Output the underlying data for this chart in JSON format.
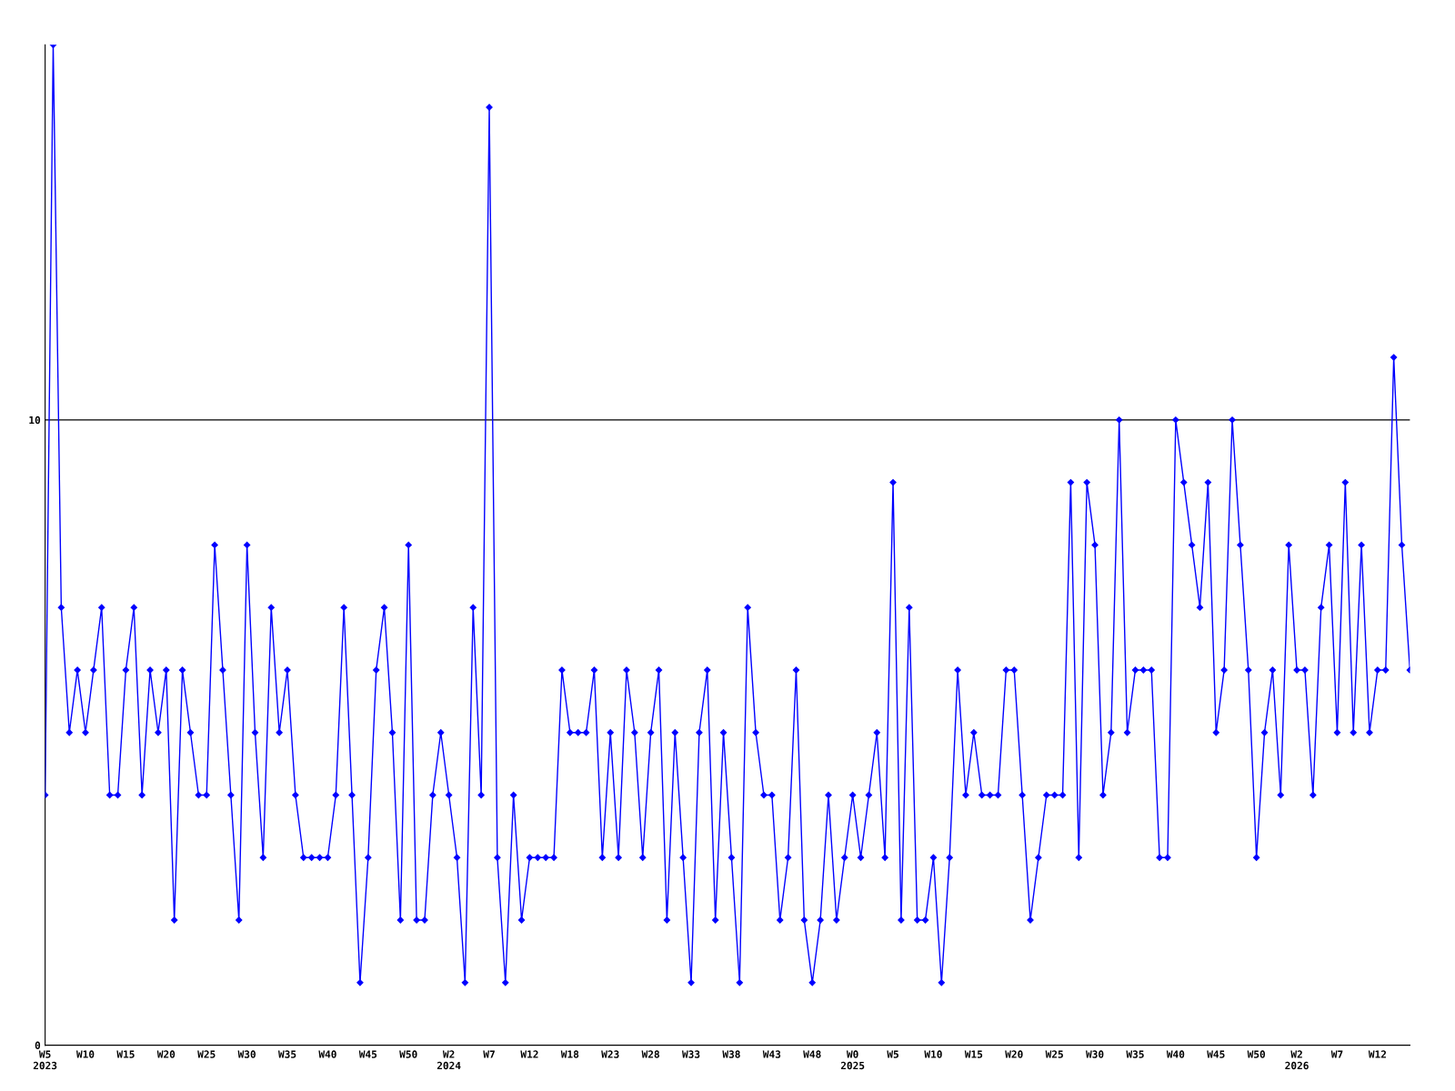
{
  "chart_data": {
    "type": "line",
    "color": "#0000ff",
    "marker": "diamond",
    "line_style": "solid",
    "grid": "y",
    "categories": [
      "W5\n2023",
      null,
      null,
      null,
      null,
      "W10",
      null,
      null,
      null,
      null,
      "W15",
      null,
      null,
      null,
      null,
      "W20",
      null,
      null,
      null,
      null,
      "W25",
      null,
      null,
      null,
      null,
      "W30",
      null,
      null,
      null,
      null,
      "W35",
      null,
      null,
      null,
      null,
      "W40",
      null,
      null,
      null,
      null,
      "W45",
      null,
      null,
      null,
      null,
      "W50",
      null,
      null,
      null,
      null,
      "W2\n2024",
      null,
      null,
      null,
      null,
      "W7",
      null,
      null,
      null,
      null,
      "W12",
      null,
      null,
      null,
      null,
      "W18",
      null,
      null,
      null,
      null,
      "W23",
      null,
      null,
      null,
      null,
      "W28",
      null,
      null,
      null,
      null,
      "W33",
      null,
      null,
      null,
      null,
      "W38",
      null,
      null,
      null,
      null,
      "W43",
      null,
      null,
      null,
      null,
      "W48",
      null,
      null,
      null,
      null,
      "W0\n2025",
      null,
      null,
      null,
      null,
      "W5",
      null,
      null,
      null,
      null,
      "W10",
      null,
      null,
      null,
      null,
      "W15",
      null,
      null,
      null,
      null,
      "W20",
      null,
      null,
      null,
      null,
      "W25",
      null,
      null,
      null,
      null,
      "W30",
      null,
      null,
      null,
      null,
      "W35",
      null,
      null,
      null,
      null,
      "W40",
      null,
      null,
      null,
      null,
      "W45",
      null,
      null,
      null,
      null,
      "W50",
      null,
      null,
      null,
      null,
      "W2\n2026",
      null,
      null,
      null,
      null,
      "W7",
      null,
      null,
      null,
      null,
      "W12",
      null,
      null,
      null,
      null
    ],
    "values": [
      4,
      16,
      7,
      5,
      6,
      5,
      6,
      7,
      4,
      4,
      6,
      7,
      4,
      6,
      5,
      6,
      2,
      6,
      5,
      4,
      4,
      8,
      6,
      4,
      2,
      8,
      5,
      3,
      7,
      5,
      6,
      4,
      3,
      3,
      3,
      3,
      4,
      7,
      4,
      1,
      3,
      6,
      7,
      5,
      2,
      8,
      2,
      2,
      4,
      5,
      4,
      3,
      1,
      7,
      4,
      15,
      3,
      1,
      4,
      2,
      3,
      3,
      3,
      3,
      6,
      5,
      5,
      5,
      6,
      3,
      5,
      3,
      6,
      5,
      3,
      5,
      6,
      2,
      5,
      3,
      1,
      5,
      6,
      2,
      5,
      3,
      1,
      7,
      5,
      4,
      4,
      2,
      3,
      6,
      2,
      1,
      2,
      4,
      2,
      3,
      4,
      3,
      4,
      5,
      3,
      9,
      2,
      7,
      2,
      2,
      3,
      1,
      3,
      6,
      4,
      5,
      4,
      4,
      4,
      6,
      6,
      4,
      2,
      3,
      4,
      4,
      4,
      9,
      3,
      9,
      8,
      4,
      5,
      10,
      5,
      6,
      6,
      6,
      3,
      3,
      10,
      9,
      8,
      7,
      9,
      5,
      6,
      10,
      8,
      6,
      3,
      5,
      6,
      4,
      8,
      6,
      6,
      4,
      7,
      8,
      5,
      9,
      5,
      8,
      5,
      6,
      6,
      11,
      8,
      6
    ],
    "ylim": [
      0,
      16
    ],
    "yticks": [
      0,
      10
    ]
  }
}
